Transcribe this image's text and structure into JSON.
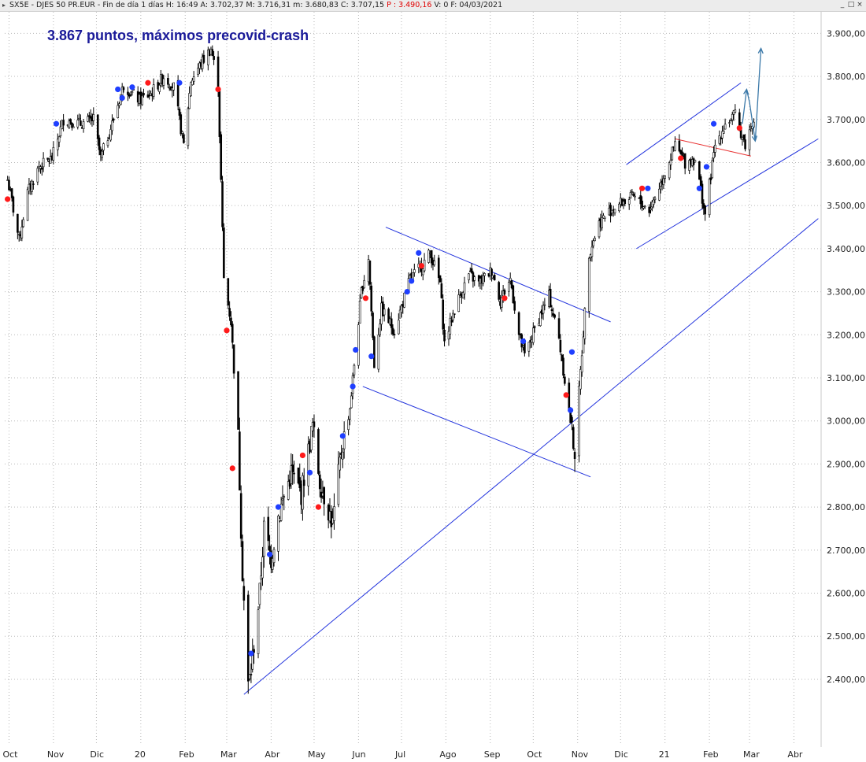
{
  "window": {
    "symbol": "SX5E - DJES 50 PR.EUR",
    "info_prefix": "SX5E - DJES 50 PR.EUR - Fin de día 1 días  H: 16:49  A: 3.702,37  M: 3.716,31  m: 3.680,83  C: 3.707,15  ",
    "p_value": "P : 3.490,16",
    "info_suffix": "  V: 0  F: 04/03/2021",
    "controls": [
      "_",
      "□",
      "×"
    ]
  },
  "chart_data": {
    "type": "candlestick",
    "title": "3.867 puntos, máximos precovid-crash",
    "xlabel": "",
    "ylabel": "",
    "ylim": [
      2250,
      3950
    ],
    "grid": true,
    "colors": {
      "candle": "#000000",
      "buy_dot": "#1f3fff",
      "sell_dot": "#ff1a1a",
      "trendline": "#2233dd",
      "red_line": "#e83030",
      "projection": "#3a78a8",
      "grid": "#b8b8b8"
    },
    "y_ticks": [
      {
        "value": 3900,
        "label": "3.900,00"
      },
      {
        "value": 3800,
        "label": "3.800,00"
      },
      {
        "value": 3700,
        "label": "3.700,00"
      },
      {
        "value": 3600,
        "label": "3.600,00"
      },
      {
        "value": 3500,
        "label": "3.500,00"
      },
      {
        "value": 3400,
        "label": "3.400,00"
      },
      {
        "value": 3300,
        "label": "3.300,00"
      },
      {
        "value": 3200,
        "label": "3.200,00"
      },
      {
        "value": 3100,
        "label": "3.100,00"
      },
      {
        "value": 3000,
        "label": "3.000,00"
      },
      {
        "value": 2900,
        "label": "2.900,00"
      },
      {
        "value": 2800,
        "label": "2.800,00"
      },
      {
        "value": 2700,
        "label": "2.700,00"
      },
      {
        "value": 2600,
        "label": "2.600,00"
      },
      {
        "value": 2500,
        "label": "2.500,00"
      },
      {
        "value": 2400,
        "label": "2.400,00"
      }
    ],
    "x_ticks": [
      {
        "date": "2019-10-01",
        "label": "Oct"
      },
      {
        "date": "2019-11-01",
        "label": "Nov"
      },
      {
        "date": "2019-12-01",
        "label": "Dic"
      },
      {
        "date": "2020-01-01",
        "label": "20"
      },
      {
        "date": "2020-02-01",
        "label": "Feb"
      },
      {
        "date": "2020-03-01",
        "label": "Mar"
      },
      {
        "date": "2020-04-01",
        "label": "Abr"
      },
      {
        "date": "2020-05-01",
        "label": "May"
      },
      {
        "date": "2020-06-01",
        "label": "Jun"
      },
      {
        "date": "2020-07-01",
        "label": "Jul"
      },
      {
        "date": "2020-08-01",
        "label": "Ago"
      },
      {
        "date": "2020-09-01",
        "label": "Sep"
      },
      {
        "date": "2020-10-01",
        "label": "Oct"
      },
      {
        "date": "2020-11-01",
        "label": "Nov"
      },
      {
        "date": "2020-12-01",
        "label": "Dic"
      },
      {
        "date": "2021-01-01",
        "label": "21"
      },
      {
        "date": "2021-02-01",
        "label": "Feb"
      },
      {
        "date": "2021-03-01",
        "label": "Mar"
      },
      {
        "date": "2021-04-01",
        "label": "Abr"
      }
    ],
    "x_range": [
      "2019-09-28",
      "2021-04-20"
    ],
    "price_path": [
      [
        "2019-09-30",
        3560
      ],
      [
        "2019-10-03",
        3510
      ],
      [
        "2019-10-08",
        3420
      ],
      [
        "2019-10-14",
        3530
      ],
      [
        "2019-10-22",
        3590
      ],
      [
        "2019-10-31",
        3610
      ],
      [
        "2019-11-08",
        3700
      ],
      [
        "2019-11-20",
        3690
      ],
      [
        "2019-11-29",
        3700
      ],
      [
        "2019-12-04",
        3610
      ],
      [
        "2019-12-12",
        3690
      ],
      [
        "2019-12-20",
        3780
      ],
      [
        "2019-12-31",
        3745
      ],
      [
        "2020-01-08",
        3760
      ],
      [
        "2020-01-17",
        3800
      ],
      [
        "2020-01-24",
        3775
      ],
      [
        "2020-01-31",
        3640
      ],
      [
        "2020-02-05",
        3790
      ],
      [
        "2020-02-12",
        3830
      ],
      [
        "2020-02-19",
        3865
      ],
      [
        "2020-02-24",
        3780
      ],
      [
        "2020-02-28",
        3330
      ],
      [
        "2020-03-04",
        3230
      ],
      [
        "2020-03-09",
        2960
      ],
      [
        "2020-03-12",
        2650
      ],
      [
        "2020-03-16",
        2385
      ],
      [
        "2020-03-18",
        2420
      ],
      [
        "2020-03-24",
        2600
      ],
      [
        "2020-03-27",
        2750
      ],
      [
        "2020-04-01",
        2680
      ],
      [
        "2020-04-06",
        2780
      ],
      [
        "2020-04-15",
        2880
      ],
      [
        "2020-04-22",
        2830
      ],
      [
        "2020-04-30",
        2990
      ],
      [
        "2020-05-05",
        2860
      ],
      [
        "2020-05-14",
        2760
      ],
      [
        "2020-05-20",
        2930
      ],
      [
        "2020-05-26",
        3030
      ],
      [
        "2020-06-03",
        3300
      ],
      [
        "2020-06-08",
        3380
      ],
      [
        "2020-06-12",
        3130
      ],
      [
        "2020-06-17",
        3260
      ],
      [
        "2020-06-26",
        3210
      ],
      [
        "2020-07-07",
        3330
      ],
      [
        "2020-07-15",
        3360
      ],
      [
        "2020-07-21",
        3390
      ],
      [
        "2020-07-28",
        3320
      ],
      [
        "2020-07-31",
        3180
      ],
      [
        "2020-08-07",
        3260
      ],
      [
        "2020-08-17",
        3340
      ],
      [
        "2020-08-24",
        3320
      ],
      [
        "2020-09-02",
        3350
      ],
      [
        "2020-09-08",
        3280
      ],
      [
        "2020-09-15",
        3330
      ],
      [
        "2020-09-21",
        3200
      ],
      [
        "2020-09-25",
        3150
      ],
      [
        "2020-10-05",
        3240
      ],
      [
        "2020-10-12",
        3290
      ],
      [
        "2020-10-19",
        3190
      ],
      [
        "2020-10-27",
        3000
      ],
      [
        "2020-10-30",
        2930
      ],
      [
        "2020-11-04",
        3160
      ],
      [
        "2020-11-09",
        3390
      ],
      [
        "2020-11-16",
        3460
      ],
      [
        "2020-11-24",
        3490
      ],
      [
        "2020-12-03",
        3510
      ],
      [
        "2020-12-10",
        3520
      ],
      [
        "2020-12-21",
        3490
      ],
      [
        "2020-12-30",
        3560
      ],
      [
        "2021-01-08",
        3640
      ],
      [
        "2021-01-15",
        3600
      ],
      [
        "2021-01-22",
        3610
      ],
      [
        "2021-01-29",
        3480
      ],
      [
        "2021-02-05",
        3640
      ],
      [
        "2021-02-12",
        3690
      ],
      [
        "2021-02-19",
        3710
      ],
      [
        "2021-02-26",
        3640
      ],
      [
        "2021-03-04",
        3707
      ]
    ],
    "signals": [
      {
        "date": "2019-09-30",
        "value": 3515,
        "type": "sell"
      },
      {
        "date": "2019-11-03",
        "value": 3690,
        "type": "buy"
      },
      {
        "date": "2019-12-16",
        "value": 3770,
        "type": "buy"
      },
      {
        "date": "2019-12-19",
        "value": 3750,
        "type": "buy"
      },
      {
        "date": "2019-12-26",
        "value": 3775,
        "type": "buy"
      },
      {
        "date": "2020-01-06",
        "value": 3785,
        "type": "sell"
      },
      {
        "date": "2020-01-28",
        "value": 3785,
        "type": "buy"
      },
      {
        "date": "2020-02-24",
        "value": 3770,
        "type": "sell"
      },
      {
        "date": "2020-03-01",
        "value": 3210,
        "type": "sell"
      },
      {
        "date": "2020-03-05",
        "value": 2890,
        "type": "sell"
      },
      {
        "date": "2020-03-18",
        "value": 2460,
        "type": "buy"
      },
      {
        "date": "2020-03-31",
        "value": 2690,
        "type": "buy"
      },
      {
        "date": "2020-04-06",
        "value": 2800,
        "type": "buy"
      },
      {
        "date": "2020-04-23",
        "value": 2920,
        "type": "sell"
      },
      {
        "date": "2020-04-28",
        "value": 2880,
        "type": "buy"
      },
      {
        "date": "2020-05-04",
        "value": 2800,
        "type": "sell"
      },
      {
        "date": "2020-05-21",
        "value": 2965,
        "type": "buy"
      },
      {
        "date": "2020-05-28",
        "value": 3080,
        "type": "buy"
      },
      {
        "date": "2020-05-30",
        "value": 3165,
        "type": "buy"
      },
      {
        "date": "2020-06-06",
        "value": 3285,
        "type": "sell"
      },
      {
        "date": "2020-06-10",
        "value": 3150,
        "type": "buy"
      },
      {
        "date": "2020-07-05",
        "value": 3300,
        "type": "buy"
      },
      {
        "date": "2020-07-08",
        "value": 3325,
        "type": "buy"
      },
      {
        "date": "2020-07-13",
        "value": 3390,
        "type": "buy"
      },
      {
        "date": "2020-07-15",
        "value": 3360,
        "type": "sell"
      },
      {
        "date": "2020-09-11",
        "value": 3285,
        "type": "sell"
      },
      {
        "date": "2020-09-24",
        "value": 3185,
        "type": "buy"
      },
      {
        "date": "2020-10-24",
        "value": 3060,
        "type": "sell"
      },
      {
        "date": "2020-10-27",
        "value": 3025,
        "type": "buy"
      },
      {
        "date": "2020-10-28",
        "value": 3160,
        "type": "buy"
      },
      {
        "date": "2020-12-16",
        "value": 3540,
        "type": "sell"
      },
      {
        "date": "2020-12-20",
        "value": 3540,
        "type": "buy"
      },
      {
        "date": "2021-01-12",
        "value": 3610,
        "type": "sell"
      },
      {
        "date": "2021-01-25",
        "value": 3540,
        "type": "buy"
      },
      {
        "date": "2021-01-30",
        "value": 3590,
        "type": "buy"
      },
      {
        "date": "2021-02-04",
        "value": 3690,
        "type": "buy"
      },
      {
        "date": "2021-02-22",
        "value": 3680,
        "type": "sell"
      }
    ],
    "trendlines": [
      {
        "name": "support-long",
        "color": "#2233dd",
        "from": [
          "2020-03-13",
          2365
        ],
        "to": [
          "2021-04-18",
          3470
        ]
      },
      {
        "name": "falling-channel-upper",
        "color": "#2233dd",
        "from": [
          "2020-06-20",
          3450
        ],
        "to": [
          "2020-11-24",
          3230
        ]
      },
      {
        "name": "falling-channel-lower",
        "color": "#2233dd",
        "from": [
          "2020-06-04",
          3080
        ],
        "to": [
          "2020-11-10",
          2870
        ]
      },
      {
        "name": "rising-channel-upper",
        "color": "#2233dd",
        "from": [
          "2020-12-05",
          3595
        ],
        "to": [
          "2021-02-23",
          3785
        ]
      },
      {
        "name": "rising-channel-lower",
        "color": "#2233dd",
        "from": [
          "2020-12-12",
          3400
        ],
        "to": [
          "2021-04-18",
          3655
        ]
      },
      {
        "name": "red-resistance",
        "color": "#e83030",
        "from": [
          "2021-01-08",
          3655
        ],
        "to": [
          "2021-03-02",
          3615
        ]
      }
    ],
    "projection": [
      [
        "2021-02-24",
        3690
      ],
      [
        "2021-02-27",
        3770
      ],
      [
        "2021-03-01",
        3740
      ],
      [
        "2021-03-05",
        3650
      ],
      [
        "2021-03-09",
        3865
      ]
    ],
    "annotations": [
      {
        "text": "3.867 puntos, máximos precovid-crash",
        "anchor_date": "2019-10-26",
        "anchor_value": 3890
      }
    ]
  }
}
